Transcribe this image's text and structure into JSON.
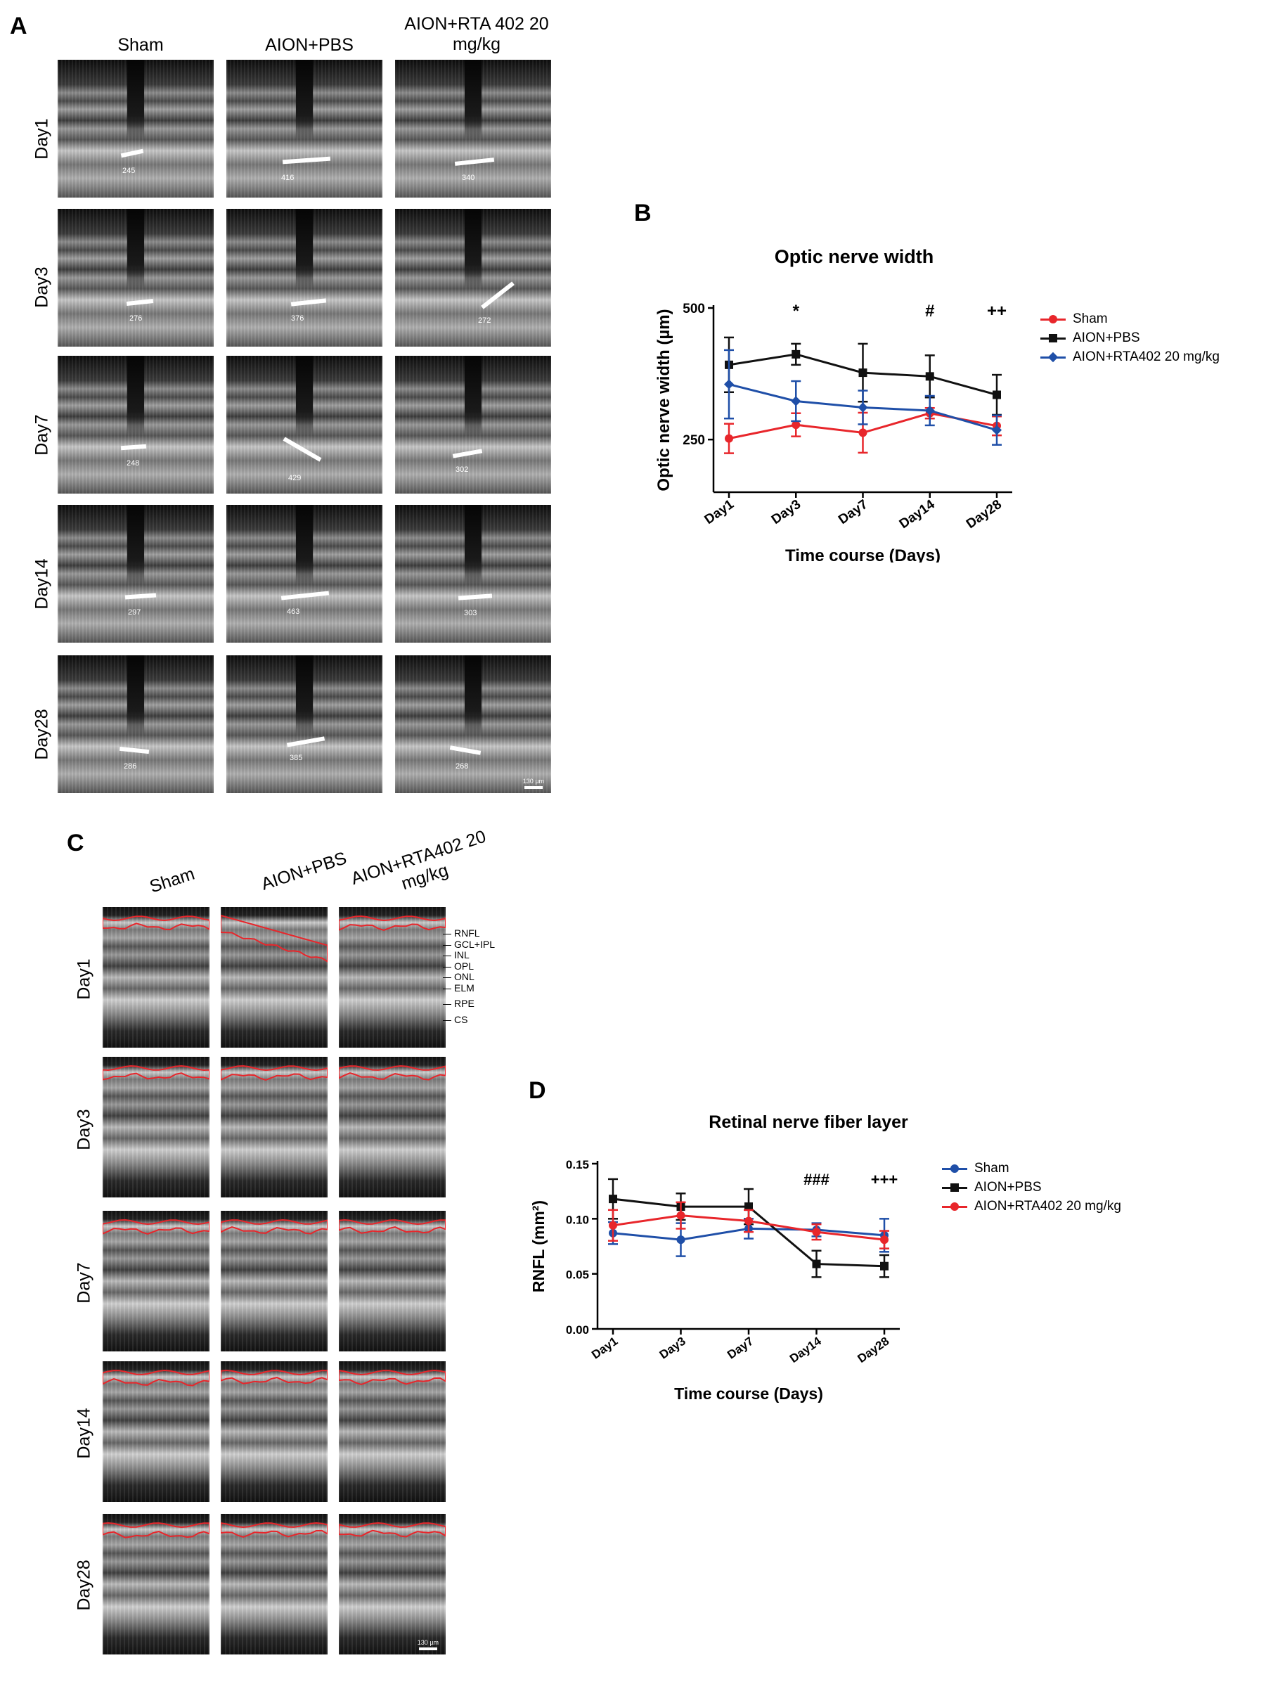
{
  "panel_a": {
    "letter": "A",
    "columns": [
      "Sham",
      "AION+PBS",
      "AION+RTA 402 20 mg/kg"
    ],
    "rows": [
      "Day1",
      "Day3",
      "Day7",
      "Day14",
      "Day28"
    ],
    "measurements": [
      [
        "245",
        "416",
        "340"
      ],
      [
        "276",
        "376",
        "272"
      ],
      [
        "248",
        "429",
        "302"
      ],
      [
        "297",
        "463",
        "303"
      ],
      [
        "286",
        "385",
        "268"
      ]
    ],
    "scale_bar": "130 µm"
  },
  "panel_b": {
    "letter": "B",
    "legend": [
      "Sham",
      "AION+PBS",
      "AION+RTA402 20 mg/kg"
    ],
    "significance": [
      "*",
      "#",
      "++"
    ]
  },
  "panel_c": {
    "letter": "C",
    "columns": [
      "Sham",
      "AION+PBS",
      "AION+RTA402 20 mg/kg"
    ],
    "rows": [
      "Day1",
      "Day3",
      "Day7",
      "Day14",
      "Day28"
    ],
    "layer_labels": [
      "RNFL",
      "GCL+IPL",
      "INL",
      "OPL",
      "ONL",
      "ELM",
      "RPE",
      "CS"
    ],
    "scale_bar": "130 µm"
  },
  "panel_d": {
    "letter": "D",
    "legend": [
      "Sham",
      "AION+PBS",
      "AION+RTA402 20 mg/kg"
    ],
    "significance": [
      "###",
      "+++"
    ]
  },
  "colors": {
    "sham_b": "#e8262b",
    "pbs": "#111111",
    "rta_b": "#1f4fa8",
    "sham_d": "#1f4fa8",
    "rta_d": "#e8262b",
    "overlay_red": "#e8262b"
  },
  "chart_data": [
    {
      "id": "B",
      "type": "line",
      "title": "Optic nerve width",
      "xlabel": "Time course (Days)",
      "ylabel": "Optic nerve width (µm)",
      "categories": [
        "Day1",
        "Day3",
        "Day7",
        "Day14",
        "Day28"
      ],
      "ylim": [
        150,
        500
      ],
      "yticks": [
        "250",
        "500"
      ],
      "ytick_values": [
        250,
        500
      ],
      "series": [
        {
          "name": "Sham",
          "color": "#e8262b",
          "marker": "circle",
          "values": [
            252,
            278,
            263,
            300,
            276
          ],
          "errors": [
            28,
            22,
            38,
            10,
            18
          ]
        },
        {
          "name": "AION+PBS",
          "color": "#111111",
          "marker": "square",
          "values": [
            392,
            412,
            377,
            370,
            335
          ],
          "errors": [
            52,
            20,
            55,
            40,
            38
          ]
        },
        {
          "name": "AION+RTA402 20 mg/kg",
          "color": "#1f4fa8",
          "marker": "diamond",
          "values": [
            355,
            323,
            311,
            305,
            268
          ],
          "errors": [
            65,
            38,
            32,
            28,
            28
          ]
        }
      ],
      "annotations": [
        {
          "text": "*",
          "x": "Day3"
        },
        {
          "text": "#",
          "x": "Day14"
        },
        {
          "text": "++",
          "x": "Day28"
        }
      ],
      "grid": false,
      "legend_position": "right"
    },
    {
      "id": "D",
      "type": "line",
      "title": "Retinal nerve fiber layer",
      "xlabel": "Time course (Days)",
      "ylabel": "RNFL (mm²)",
      "categories": [
        "Day1",
        "Day3",
        "Day7",
        "Day14",
        "Day28"
      ],
      "ylim": [
        0,
        0.15
      ],
      "yticks": [
        "0.00",
        "0.05",
        "0.10",
        "0.15"
      ],
      "ytick_values": [
        0,
        0.05,
        0.1,
        0.15
      ],
      "series": [
        {
          "name": "Sham",
          "color": "#1f4fa8",
          "marker": "circle",
          "values": [
            0.087,
            0.081,
            0.091,
            0.09,
            0.085
          ],
          "errors": [
            0.01,
            0.015,
            0.009,
            0.006,
            0.015
          ]
        },
        {
          "name": "AION+PBS",
          "color": "#111111",
          "marker": "square",
          "values": [
            0.118,
            0.111,
            0.111,
            0.059,
            0.057
          ],
          "errors": [
            0.018,
            0.012,
            0.016,
            0.012,
            0.01
          ]
        },
        {
          "name": "AION+RTA402 20 mg/kg",
          "color": "#e8262b",
          "marker": "circle",
          "values": [
            0.094,
            0.103,
            0.098,
            0.088,
            0.081
          ],
          "errors": [
            0.014,
            0.012,
            0.01,
            0.007,
            0.008
          ]
        }
      ],
      "annotations": [
        {
          "text": "###",
          "x": "Day14"
        },
        {
          "text": "+++",
          "x": "Day28"
        }
      ],
      "grid": false,
      "legend_position": "right"
    }
  ]
}
